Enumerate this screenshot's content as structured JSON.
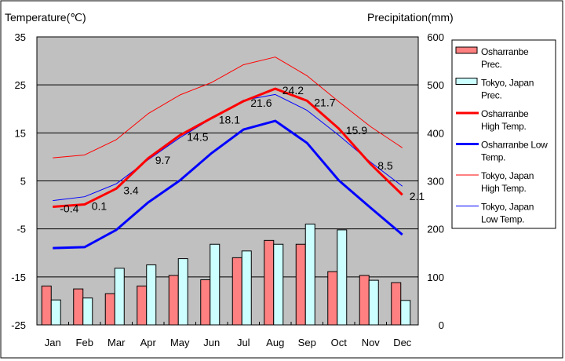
{
  "chart_data": {
    "type": "bar+line",
    "categories": [
      "Jan",
      "Feb",
      "Mar",
      "Apr",
      "May",
      "Jun",
      "Jul",
      "Aug",
      "Sep",
      "Oct",
      "Nov",
      "Dec"
    ],
    "y_left": {
      "label": "Temperature(℃)",
      "range": [
        -25,
        35
      ],
      "ticks": [
        35,
        25,
        15,
        5,
        -5,
        -15,
        -25
      ]
    },
    "y_right": {
      "label": "Precipitation(mm)",
      "range": [
        0,
        600
      ],
      "ticks": [
        600,
        500,
        400,
        300,
        200,
        100,
        0
      ]
    },
    "grid": true,
    "legend_placement": "right",
    "bar_series": [
      {
        "name": "Osharranbe Prec.",
        "legend": [
          "Osharranbe",
          "Prec."
        ],
        "color": "#ff8080",
        "values": [
          81,
          75,
          65,
          81,
          103,
          94,
          140,
          176,
          168,
          111,
          103,
          88
        ]
      },
      {
        "name": "Tokyo, Japan Prec.",
        "legend": [
          "Tokyo, Japan",
          "Prec."
        ],
        "color": "#ccffff",
        "values": [
          52,
          56,
          118,
          125,
          138,
          168,
          154,
          168,
          210,
          198,
          93,
          51
        ]
      }
    ],
    "line_series": [
      {
        "name": "Osharranbe High Temp.",
        "legend": [
          "Osharranbe",
          "High Temp."
        ],
        "color": "#ff0000",
        "width": 3,
        "labels": true,
        "values": [
          -0.4,
          0.1,
          3.4,
          9.7,
          14.5,
          18.1,
          21.6,
          24.2,
          21.7,
          15.9,
          8.5,
          2.1
        ],
        "label_text": [
          "-0.4",
          "0.1",
          "3.4",
          "9.7",
          "14.5",
          "18.1",
          "21.6",
          "24.2",
          "21.7",
          "15.9",
          "8.5",
          "2.1"
        ]
      },
      {
        "name": "Osharranbe Low Temp.",
        "legend": [
          "Osharranbe Low",
          "Temp."
        ],
        "color": "#0000ff",
        "width": 3,
        "labels": false,
        "values": [
          -9.0,
          -8.8,
          -5.2,
          0.5,
          5.1,
          10.8,
          15.7,
          17.5,
          12.9,
          5.1,
          -0.6,
          -6.2
        ]
      },
      {
        "name": "Tokyo, Japan High Temp.",
        "legend": [
          "Tokyo, Japan",
          "High Temp."
        ],
        "color": "#ff0000",
        "width": 1,
        "labels": false,
        "values": [
          9.8,
          10.4,
          13.6,
          19.0,
          22.9,
          25.5,
          29.2,
          30.8,
          26.9,
          21.5,
          16.3,
          11.9
        ]
      },
      {
        "name": "Tokyo, Japan Low Temp.",
        "legend": [
          "Tokyo, Japan",
          "Low Temp."
        ],
        "color": "#0000ff",
        "width": 1,
        "labels": false,
        "values": [
          0.9,
          1.7,
          4.4,
          9.4,
          14.0,
          18.0,
          21.8,
          23.0,
          19.7,
          14.5,
          8.9,
          3.9
        ]
      }
    ]
  }
}
